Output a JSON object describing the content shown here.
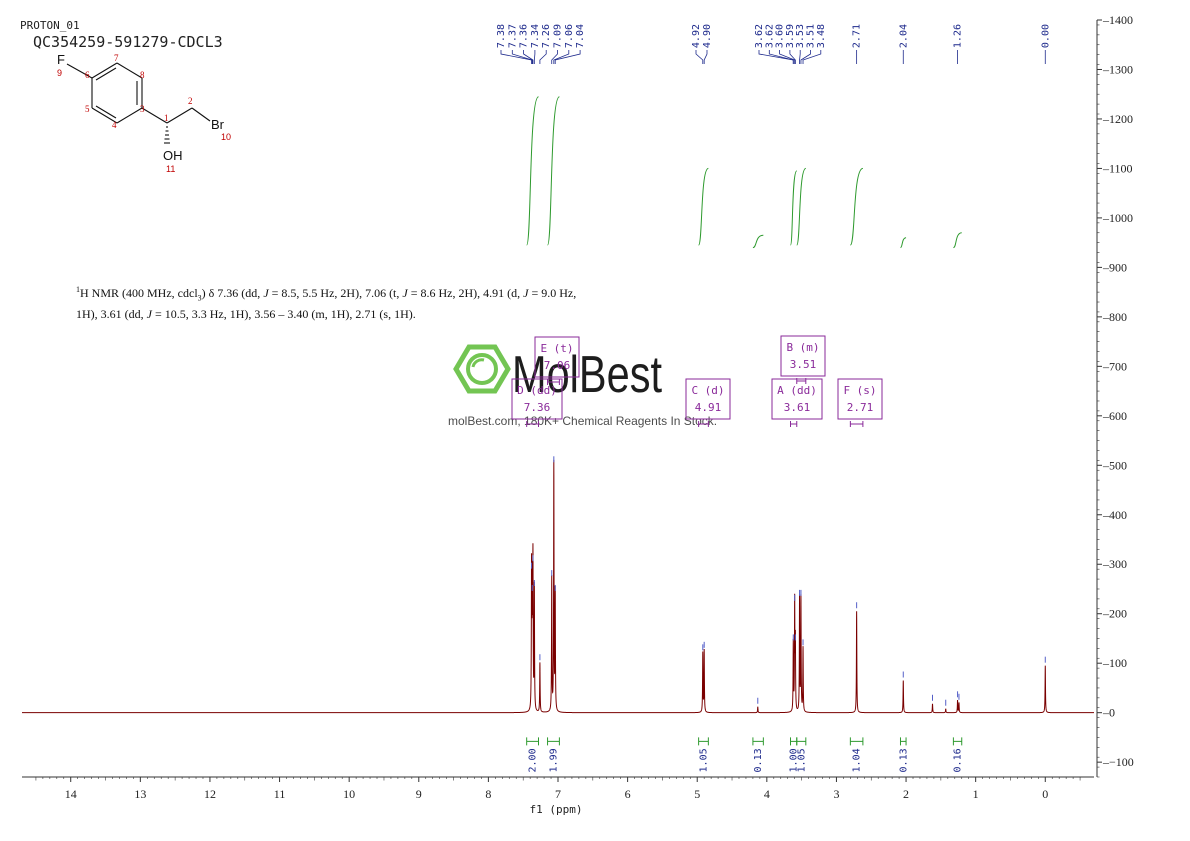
{
  "header": {
    "experiment": "PROTON_01",
    "sample": "QC354259-591279-CDCL3"
  },
  "molecule": {
    "atoms": [
      {
        "label": "F",
        "number": "9"
      },
      {
        "label": "Br",
        "number": "10"
      },
      {
        "label": "OH",
        "number": "11"
      }
    ],
    "ring_numbers": [
      "3",
      "4",
      "5",
      "6",
      "7",
      "8"
    ],
    "chain_numbers": [
      "1",
      "2"
    ]
  },
  "description": {
    "nucleus_sup": "1",
    "text_1": "H NMR (400 MHz, cdcl",
    "text_1_sub": "3",
    "text_2": ") δ 7.36 (dd, ",
    "J": "J",
    "text_3": " = 8.5, 5.5 Hz, 2H), 7.06 (t, ",
    "text_4": " = 8.6 Hz, 2H), 4.91 (d, ",
    "text_5": " = 9.0 Hz,",
    "line2_a": "1H), 3.61 (dd, ",
    "line2_b": " = 10.5, 3.3 Hz, 1H), 3.56 – 3.40 (m, 1H), 2.71 (s, 1H)."
  },
  "watermark": {
    "brand": "MolBest",
    "tagline": "molBest.com, 180K+ Chemical Reagents In Stock."
  },
  "chart_data": {
    "type": "line",
    "title": "",
    "xlabel": "f1 (ppm)",
    "ylabel": "",
    "xlim": [
      14.7,
      -0.7
    ],
    "ylim": [
      -130,
      1400
    ],
    "x_ticks": [
      14,
      13,
      12,
      11,
      10,
      9,
      8,
      7,
      6,
      5,
      4,
      3,
      2,
      1,
      0
    ],
    "y_ticks": [
      -100,
      0,
      100,
      200,
      300,
      400,
      500,
      600,
      700,
      800,
      900,
      1000,
      1100,
      1200,
      1300,
      1400
    ],
    "peaks": [
      {
        "ppm": 7.38,
        "height": 285
      },
      {
        "ppm": 7.37,
        "height": 240
      },
      {
        "ppm": 7.36,
        "height": 300
      },
      {
        "ppm": 7.34,
        "height": 250
      },
      {
        "ppm": 7.26,
        "height": 100
      },
      {
        "ppm": 7.09,
        "height": 270
      },
      {
        "ppm": 7.06,
        "height": 500
      },
      {
        "ppm": 7.04,
        "height": 240
      },
      {
        "ppm": 4.92,
        "height": 120
      },
      {
        "ppm": 4.9,
        "height": 125
      },
      {
        "ppm": 4.13,
        "height": 12
      },
      {
        "ppm": 3.62,
        "height": 140
      },
      {
        "ppm": 3.6,
        "height": 220
      },
      {
        "ppm": 3.59,
        "height": 140
      },
      {
        "ppm": 3.53,
        "height": 230
      },
      {
        "ppm": 3.51,
        "height": 230
      },
      {
        "ppm": 3.48,
        "height": 130
      },
      {
        "ppm": 2.71,
        "height": 205
      },
      {
        "ppm": 2.04,
        "height": 65
      },
      {
        "ppm": 1.62,
        "height": 18
      },
      {
        "ppm": 1.26,
        "height": 25
      },
      {
        "ppm": 1.24,
        "height": 20
      },
      {
        "ppm": 1.43,
        "height": 8
      },
      {
        "ppm": 0.0,
        "height": 95
      }
    ],
    "peak_labels": {
      "group1": [
        "7.38",
        "7.37",
        "7.36",
        "7.34",
        "7.26",
        "7.09",
        "7.06",
        "7.04"
      ],
      "group2": [
        "4.92",
        "4.90"
      ],
      "group3": [
        "3.62",
        "3.62",
        "3.60",
        "3.59",
        "3.53",
        "3.51",
        "3.48"
      ],
      "singles": [
        "2.71",
        "2.04",
        "1.26",
        "0.00"
      ]
    },
    "integrals": [
      {
        "from": 7.45,
        "to": 7.28,
        "value": "2.00",
        "low": 945,
        "high": 1245
      },
      {
        "from": 7.15,
        "to": 6.98,
        "value": "1.99",
        "low": 945,
        "high": 1245
      },
      {
        "from": 4.98,
        "to": 4.84,
        "value": "1.05",
        "low": 945,
        "high": 1100
      },
      {
        "from": 4.2,
        "to": 4.05,
        "value": "0.13",
        "low": 940,
        "high": 965
      },
      {
        "from": 3.66,
        "to": 3.57,
        "value": "1.00",
        "low": 945,
        "high": 1095
      },
      {
        "from": 3.57,
        "to": 3.44,
        "value": "1.05",
        "low": 945,
        "high": 1100
      },
      {
        "from": 2.8,
        "to": 2.62,
        "value": "1.04",
        "low": 945,
        "high": 1100
      },
      {
        "from": 2.08,
        "to": 2.0,
        "value": "0.13",
        "low": 940,
        "high": 960
      },
      {
        "from": 1.32,
        "to": 1.2,
        "value": "0.16",
        "low": 940,
        "high": 970
      }
    ],
    "multiplets": [
      {
        "letter": "A",
        "mult": "dd",
        "shift": "3.61"
      },
      {
        "letter": "B",
        "mult": "m",
        "shift": "3.51"
      },
      {
        "letter": "C",
        "mult": "d",
        "shift": "4.91"
      },
      {
        "letter": "D",
        "mult": "dd",
        "shift": "7.36"
      },
      {
        "letter": "E",
        "mult": "t",
        "shift": "7.06"
      },
      {
        "letter": "F",
        "mult": "s",
        "shift": "2.71"
      }
    ],
    "colors": {
      "spectrum": "#7a0000",
      "integral": "#2e9a2e",
      "peak_label": "#1e2a8c",
      "multiplet": "#8a2a9a",
      "axis": "#333333",
      "logo": "#6cc24a"
    }
  }
}
